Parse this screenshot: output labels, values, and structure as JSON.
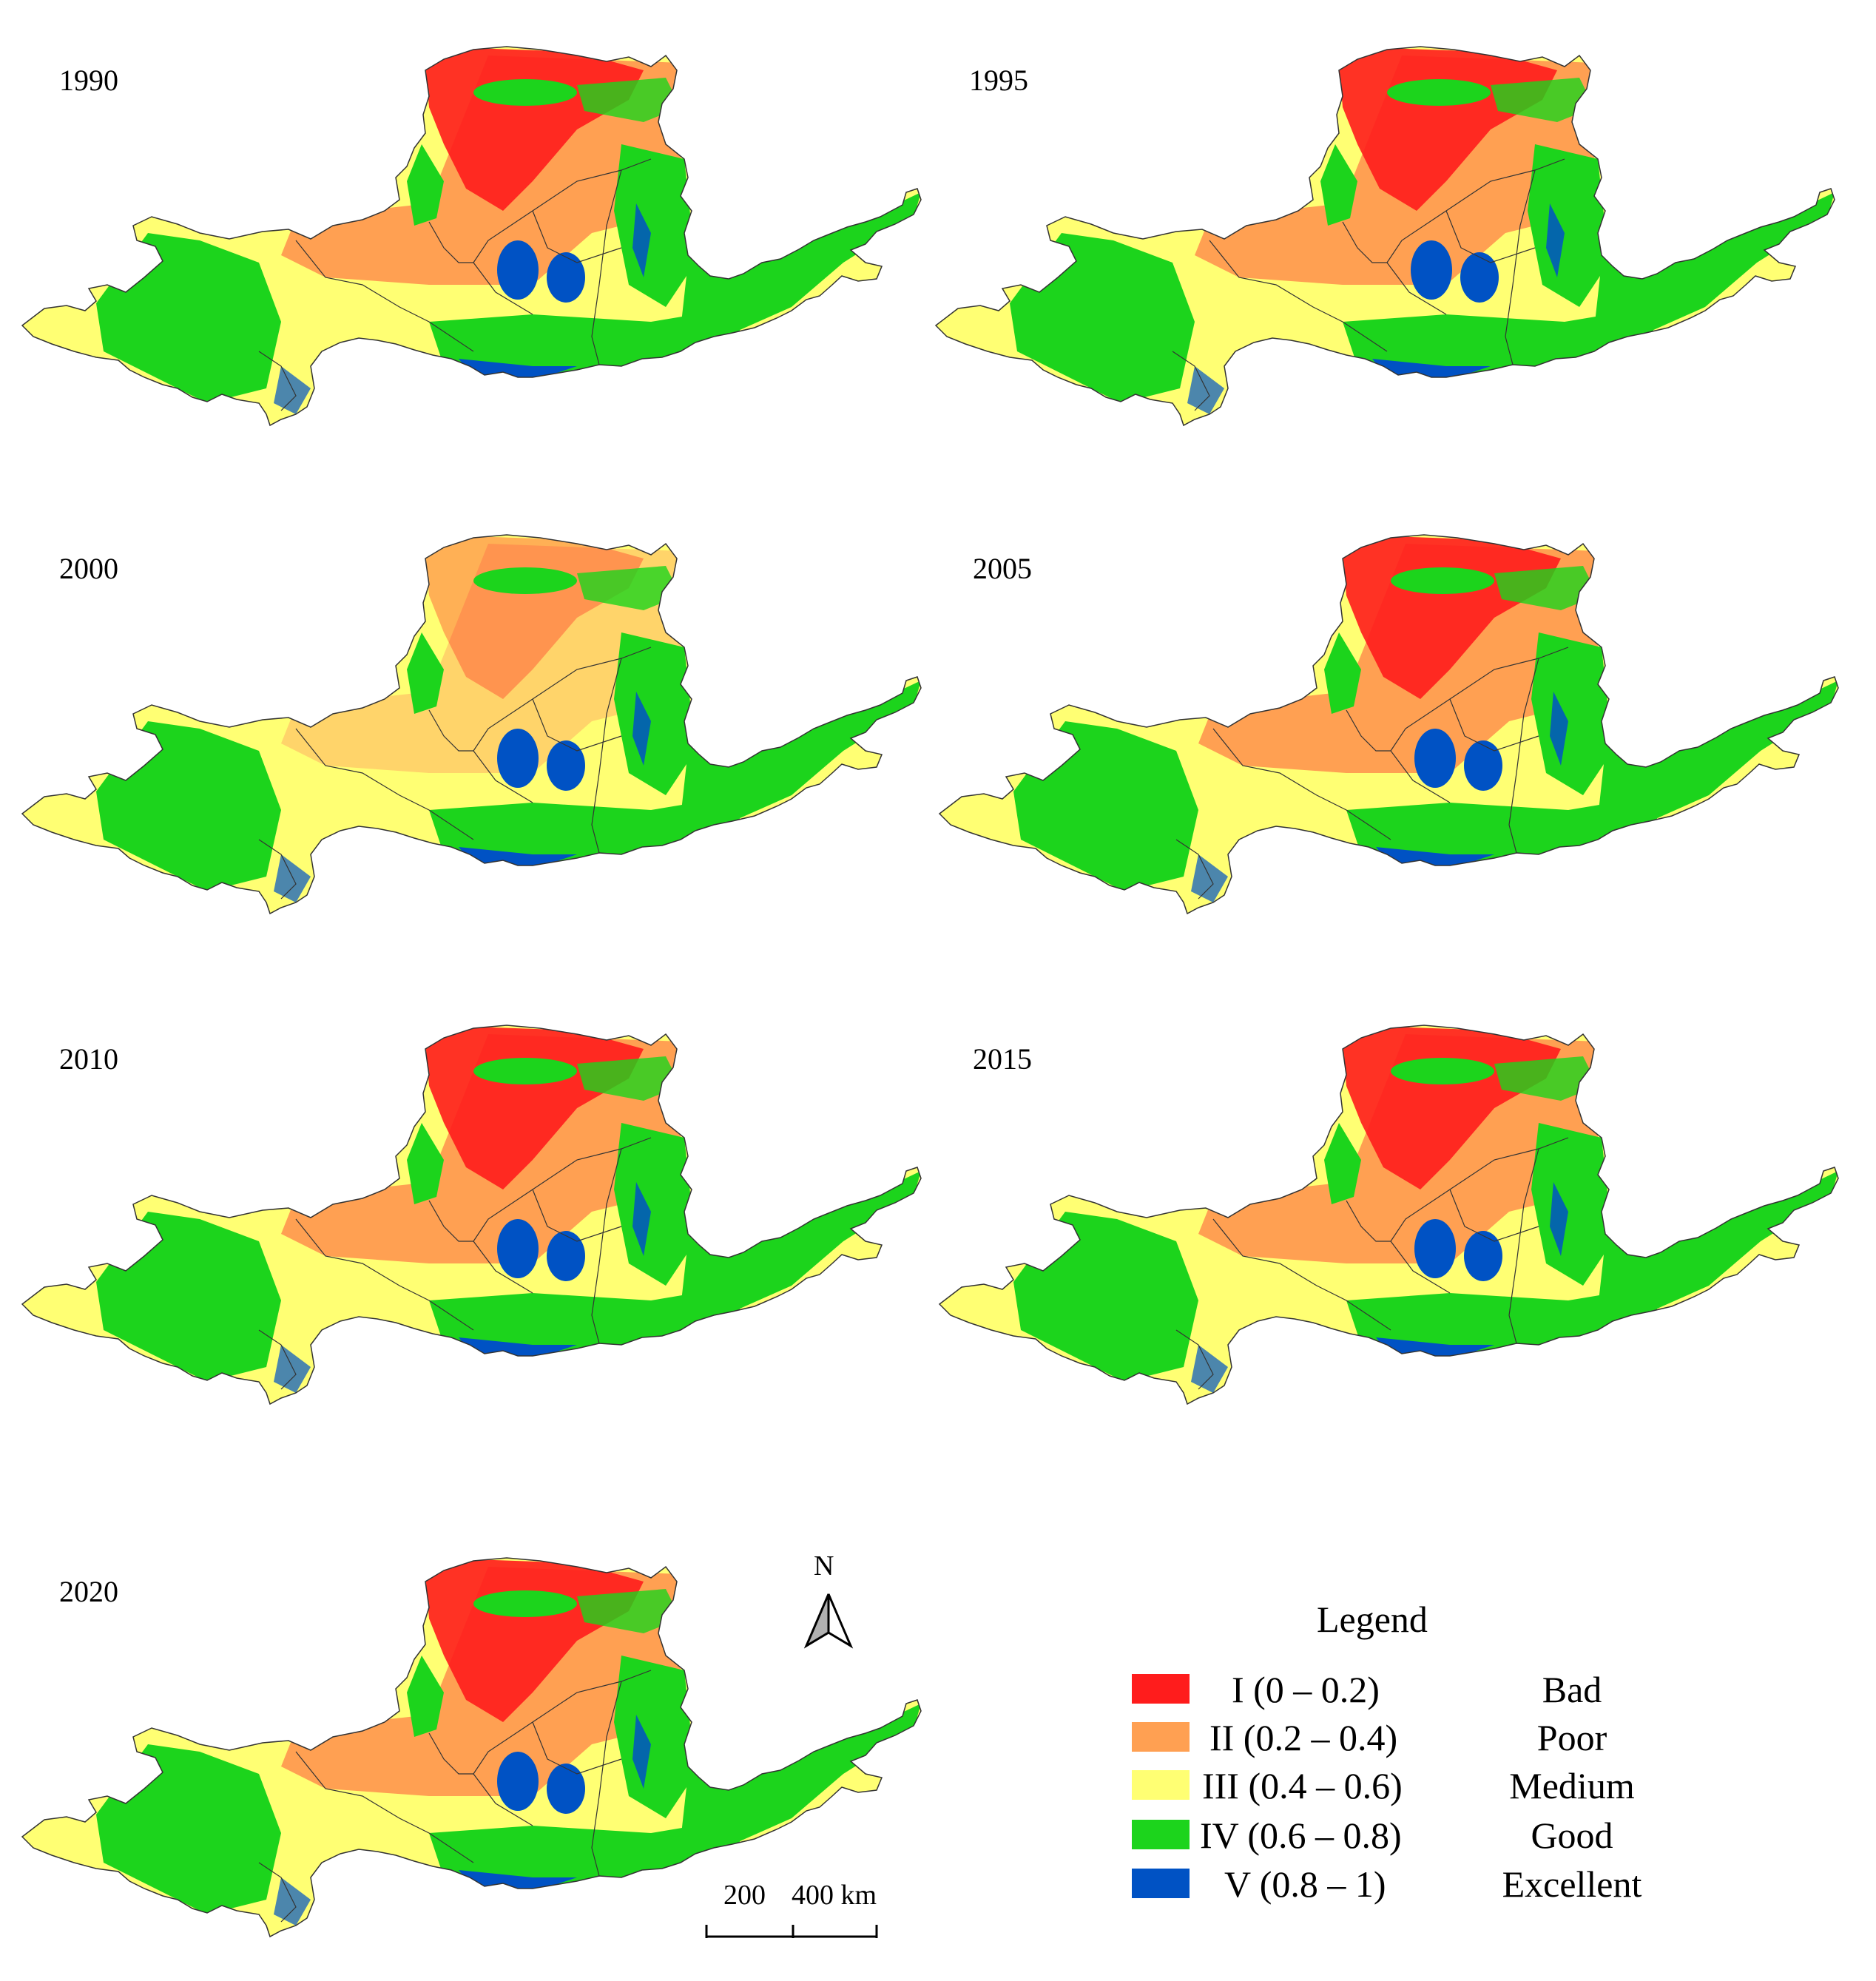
{
  "panels": [
    {
      "year": "1990"
    },
    {
      "year": "1995"
    },
    {
      "year": "2000"
    },
    {
      "year": "2005"
    },
    {
      "year": "2010"
    },
    {
      "year": "2015"
    },
    {
      "year": "2020"
    }
  ],
  "legend": {
    "title": "Legend",
    "items": [
      {
        "class": "I  (0 – 0.2)",
        "label": "Bad",
        "color": "#ff1c1c"
      },
      {
        "class": "II  (0.2 – 0.4)",
        "label": "Poor",
        "color": "#ffa052"
      },
      {
        "class": "III  (0.4 – 0.6)",
        "label": "Medium",
        "color": "#ffff73"
      },
      {
        "class": "IV  (0.6 – 0.8)",
        "label": "Good",
        "color": "#1cd41c"
      },
      {
        "class": "V  (0.8 – 1)",
        "label": "Excellent",
        "color": "#0052c4"
      }
    ]
  },
  "north_arrow": {
    "label": "N"
  },
  "scale_bar": {
    "label_1": "200",
    "label_2": "400 km"
  }
}
